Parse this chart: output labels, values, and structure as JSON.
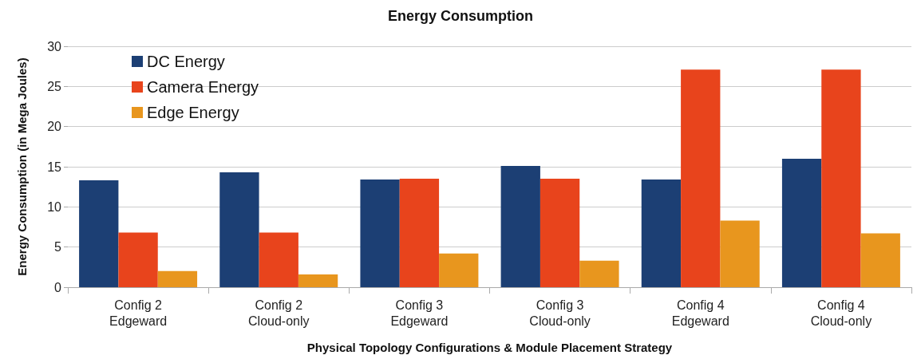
{
  "chart_data": {
    "type": "bar",
    "title": "Energy Consumption",
    "xlabel": "Physical Topology Configurations & Module Placement Strategy",
    "ylabel": "Energy Consumption (in Mega Joules)",
    "categories": [
      "Config 2\nEdgeward",
      "Config 2\nCloud-only",
      "Config 3\nEdgeward",
      "Config 3\nCloud-only",
      "Config 4\nEdgeward",
      "Config 4\nCloud-only"
    ],
    "series": [
      {
        "name": "DC Energy",
        "color": "#1c3f74",
        "values": [
          13.3,
          14.3,
          13.4,
          15.1,
          13.4,
          16.0
        ]
      },
      {
        "name": "Camera Energy",
        "color": "#e8441c",
        "values": [
          6.8,
          6.8,
          13.5,
          13.5,
          27.1,
          27.1
        ]
      },
      {
        "name": "Edge Energy",
        "color": "#e8961e",
        "values": [
          2.0,
          1.6,
          4.2,
          3.3,
          8.3,
          6.7
        ]
      }
    ],
    "ylim": [
      0,
      30
    ],
    "yticks": [
      0,
      5,
      10,
      15,
      20,
      25,
      30
    ],
    "grid": "y",
    "legend": "top left"
  }
}
